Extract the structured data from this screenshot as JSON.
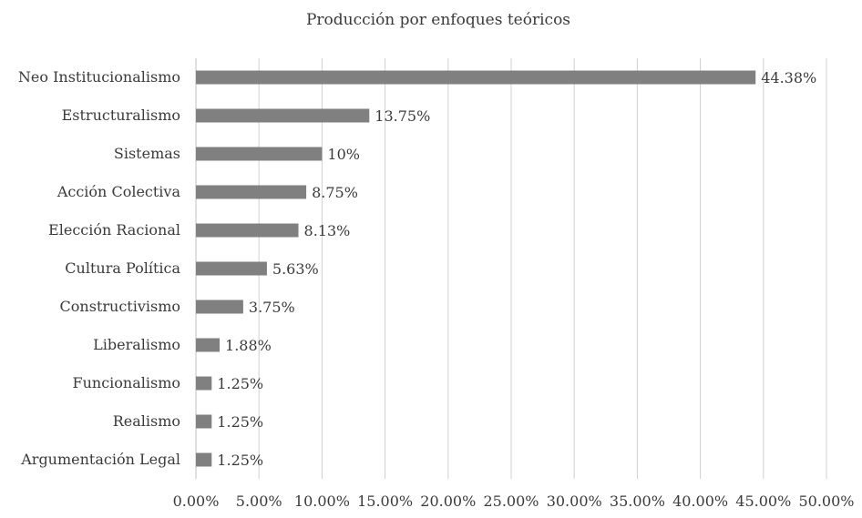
{
  "chart_data": {
    "type": "bar",
    "orientation": "horizontal",
    "title": "Producción por enfoques teóricos",
    "xlabel": "",
    "ylabel": "",
    "categories": [
      "Neo Institucionalismo",
      "Estructuralismo",
      "Sistemas",
      "Acción Colectiva",
      "Elección Racional",
      "Cultura Política",
      "Constructivismo",
      "Liberalismo",
      "Funcionalismo",
      "Realismo",
      "Argumentación Legal"
    ],
    "values": [
      44.38,
      13.75,
      10,
      8.75,
      8.13,
      5.63,
      3.75,
      1.88,
      1.25,
      1.25,
      1.25
    ],
    "data_labels": [
      "44.38%",
      "13.75%",
      "10%",
      "8.75%",
      "8.13%",
      "5.63%",
      "3.75%",
      "1.88%",
      "1.25%",
      "1.25%",
      "1.25%"
    ],
    "xlim": [
      0,
      50
    ],
    "x_ticks": [
      "0.00%",
      "5.00%",
      "10.00%",
      "15.00%",
      "20.00%",
      "25.00%",
      "30.00%",
      "35.00%",
      "40.00%",
      "45.00%",
      "50.00%"
    ],
    "grid": true,
    "legend": "none",
    "colors": {
      "bar": "#808080",
      "grid": "#d0d0d0",
      "text": "#3a3a3a"
    }
  }
}
